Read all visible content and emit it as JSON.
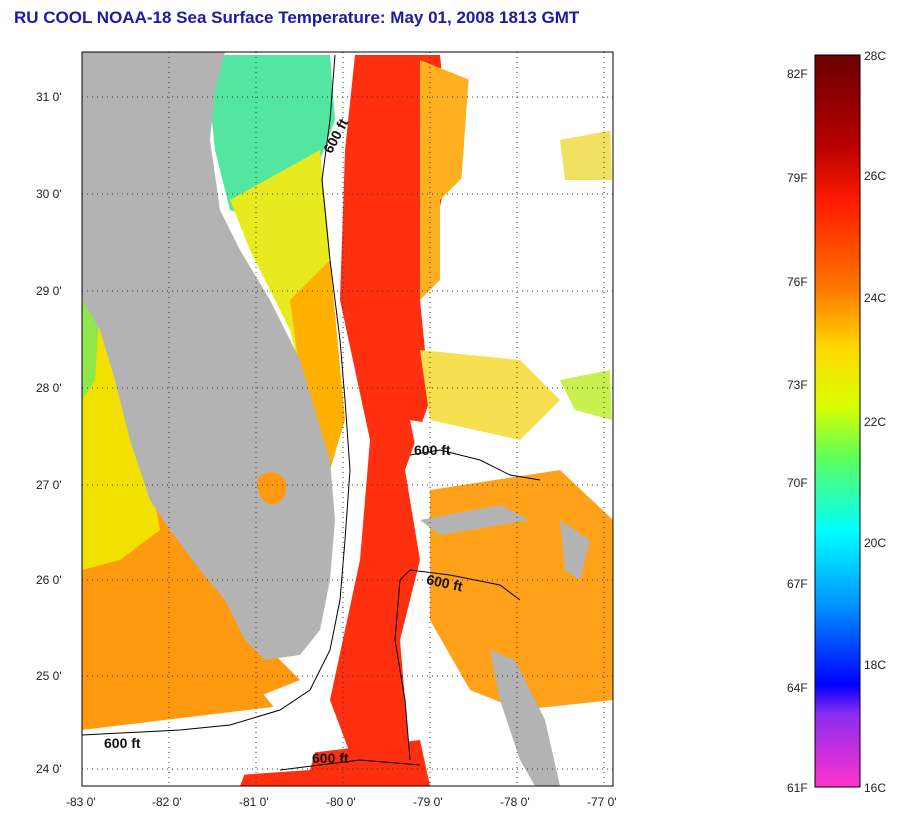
{
  "title": "RU COOL  NOAA-18  Sea Surface Temperature:  May 01, 2008 1813 GMT",
  "map": {
    "lat_ticks": [
      "31 0'",
      "30 0'",
      "29 0'",
      "28 0'",
      "27 0'",
      "26 0'",
      "25 0'",
      "24 0'"
    ],
    "lon_ticks": [
      "-83 0'",
      "-82 0'",
      "-81 0'",
      "-80 0'",
      "-79 0'",
      "-78 0'",
      "-77 0'"
    ],
    "contour_labels": [
      "600 ft",
      "600 ft",
      "600 ft",
      "600 ft",
      "600 ft"
    ],
    "land_color": "#b3b3b3",
    "no_data_color": "#ffffff"
  },
  "colorbar": {
    "fahrenheit_labels": [
      "82F",
      "79F",
      "76F",
      "73F",
      "70F",
      "67F",
      "64F",
      "61F"
    ],
    "celsius_labels": [
      "28C",
      "26C",
      "24C",
      "22C",
      "20C",
      "18C",
      "16C"
    ],
    "colors": [
      "#7a0000",
      "#d40000",
      "#ff2a00",
      "#ff7a00",
      "#ffd200",
      "#e8ff00",
      "#7dff4a",
      "#00ffd2",
      "#00a8ff",
      "#0000ff",
      "#7a3aff",
      "#ff33c8"
    ]
  }
}
